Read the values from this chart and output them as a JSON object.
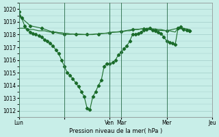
{
  "background_color": "#c8eee8",
  "grid_color": "#a0ccc8",
  "line_color_main": "#1a6b2a",
  "line_color_flat": "#2a7a3a",
  "xlabel": "Pression niveau de la mer( hPa )",
  "ylabel": "",
  "ylim": [
    1011.5,
    1020.5
  ],
  "yticks": [
    1012,
    1013,
    1014,
    1015,
    1016,
    1017,
    1018,
    1019,
    1020
  ],
  "xtick_positions": [
    0,
    96,
    192,
    216,
    312,
    408
  ],
  "xtick_labels": [
    "Lun",
    "",
    "Ven",
    "Mar",
    "Mer",
    "Jeu"
  ],
  "vlines": [
    0,
    96,
    192,
    216,
    312,
    408
  ],
  "series1": {
    "x": [
      0,
      6,
      12,
      18,
      24,
      30,
      36,
      42,
      48,
      54,
      60,
      66,
      72,
      78,
      84,
      90,
      96,
      102,
      108,
      114,
      120,
      126,
      132,
      138,
      144,
      150,
      156,
      162,
      168,
      174,
      180,
      186,
      192,
      198,
      204,
      210,
      216,
      222,
      228,
      234,
      240,
      246,
      252,
      258,
      264,
      270,
      276,
      282,
      288,
      294,
      300,
      306,
      312,
      318,
      324,
      330,
      336,
      342,
      348,
      354,
      360
    ],
    "y": [
      1019.8,
      1019.3,
      1018.7,
      1018.4,
      1018.2,
      1018.1,
      1018.0,
      1017.9,
      1017.8,
      1017.6,
      1017.5,
      1017.3,
      1017.1,
      1016.8,
      1016.5,
      1016.0,
      1015.5,
      1015.0,
      1014.8,
      1014.5,
      1014.2,
      1013.9,
      1013.5,
      1013.1,
      1012.2,
      1012.1,
      1013.1,
      1013.5,
      1014.0,
      1014.4,
      1015.5,
      1015.7,
      1015.7,
      1015.8,
      1016.0,
      1016.4,
      1016.6,
      1016.9,
      1017.1,
      1017.5,
      1018.0,
      1018.0,
      1018.1,
      1018.2,
      1018.35,
      1018.4,
      1018.5,
      1018.35,
      1018.3,
      1018.2,
      1018.1,
      1017.8,
      1017.5,
      1017.4,
      1017.3,
      1017.2,
      1018.5,
      1018.6,
      1018.4,
      1018.35,
      1018.3
    ]
  },
  "series2": {
    "x": [
      0,
      6,
      12,
      18,
      24,
      30,
      36,
      42,
      48,
      54,
      60,
      66,
      72,
      78,
      84,
      90,
      96,
      102,
      108,
      114,
      120,
      126,
      132,
      138,
      144,
      150,
      156,
      162,
      168,
      174,
      180,
      186,
      192,
      198,
      204,
      210,
      216,
      222,
      228,
      234,
      240,
      246,
      252,
      258,
      264,
      270,
      276,
      282,
      288,
      294,
      300,
      306,
      312,
      318,
      324,
      330,
      336,
      342,
      348,
      354,
      360
    ],
    "y": [
      1018.5,
      1018.5,
      1018.5,
      1018.4,
      1018.4,
      1018.4,
      1018.35,
      1018.3,
      1018.3,
      1018.3,
      1018.25,
      1018.2,
      1018.2,
      1018.2,
      1018.15,
      1018.15,
      1018.1,
      1018.1,
      1018.05,
      1018.05,
      1018.0,
      1018.0,
      1018.0,
      1018.0,
      1018.0,
      1018.0,
      1018.0,
      1018.05,
      1018.05,
      1018.1,
      1018.1,
      1018.1,
      1018.15,
      1018.2,
      1018.2,
      1018.2,
      1018.25,
      1018.25,
      1018.3,
      1018.3,
      1018.35,
      1018.4,
      1018.4,
      1018.45,
      1018.45,
      1018.5,
      1018.5,
      1018.45,
      1018.45,
      1018.4,
      1018.4,
      1018.35,
      1018.3,
      1018.3,
      1018.25,
      1018.2,
      1018.5,
      1018.5,
      1018.5,
      1018.45,
      1018.4
    ]
  },
  "series3": {
    "x": [
      0,
      24,
      48,
      72,
      96,
      120,
      144,
      168,
      192,
      216,
      240,
      264,
      288,
      312,
      336,
      360
    ],
    "y": [
      1019.5,
      1018.7,
      1018.5,
      1018.2,
      1018.0,
      1018.05,
      1018.0,
      1018.05,
      1018.15,
      1018.25,
      1018.4,
      1018.45,
      1018.35,
      1018.3,
      1018.5,
      1018.3
    ]
  }
}
